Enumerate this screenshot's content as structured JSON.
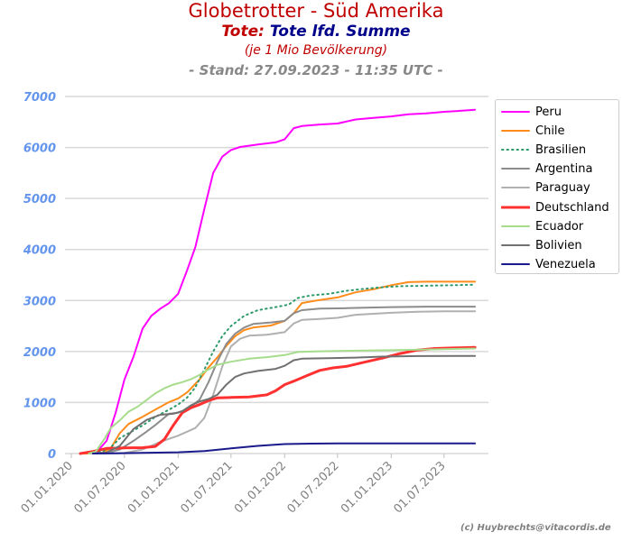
{
  "header": {
    "title": "Globetrotter - Süd Amerika",
    "subtitle_part1": "Tote:",
    "subtitle_part2": "Tote lfd. Summe",
    "subtitle_note": "(je 1 Mio Bevölkerung)",
    "stand": "- Stand: 27.09.2023 - 11:35 UTC -"
  },
  "credit": "(c) Huybrechts@vitacordis.de",
  "chart_data": {
    "type": "line",
    "title": "Globetrotter - Süd Amerika",
    "xlabel": "",
    "ylabel": "",
    "ylim": [
      0,
      7000
    ],
    "grid": true,
    "legend_position": "right",
    "y_ticks": [
      "0",
      "1000",
      "2000",
      "3000",
      "4000",
      "5000",
      "6000",
      "7000"
    ],
    "x_ticks": [
      "01.01.2020",
      "01.07.2020",
      "01.01.2021",
      "01.07.2021",
      "01.01.2022",
      "01.07.2022",
      "01.01.2023",
      "01.07.2023"
    ],
    "x_start": "2020-01-01",
    "x_end": "2023-12-01",
    "series": [
      {
        "name": "Peru",
        "color": "#ff00ff",
        "style": "solid",
        "width": 2,
        "points": [
          [
            "2020-02-15",
            0
          ],
          [
            "2020-03-25",
            10
          ],
          [
            "2020-05-01",
            250
          ],
          [
            "2020-06-01",
            800
          ],
          [
            "2020-07-01",
            1450
          ],
          [
            "2020-08-01",
            1900
          ],
          [
            "2020-09-01",
            2450
          ],
          [
            "2020-10-01",
            2700
          ],
          [
            "2020-11-01",
            2840
          ],
          [
            "2020-12-01",
            2950
          ],
          [
            "2021-01-01",
            3130
          ],
          [
            "2021-02-01",
            3600
          ],
          [
            "2021-03-01",
            4050
          ],
          [
            "2021-04-01",
            4800
          ],
          [
            "2021-05-01",
            5500
          ],
          [
            "2021-06-01",
            5820
          ],
          [
            "2021-07-01",
            5950
          ],
          [
            "2021-08-01",
            6010
          ],
          [
            "2021-10-01",
            6060
          ],
          [
            "2021-12-01",
            6100
          ],
          [
            "2022-01-01",
            6160
          ],
          [
            "2022-02-01",
            6380
          ],
          [
            "2022-03-01",
            6420
          ],
          [
            "2022-05-01",
            6450
          ],
          [
            "2022-07-01",
            6470
          ],
          [
            "2022-09-01",
            6550
          ],
          [
            "2022-11-01",
            6580
          ],
          [
            "2023-01-01",
            6610
          ],
          [
            "2023-03-01",
            6650
          ],
          [
            "2023-05-01",
            6670
          ],
          [
            "2023-07-01",
            6700
          ],
          [
            "2023-09-01",
            6720
          ],
          [
            "2023-10-15",
            6740
          ]
        ]
      },
      {
        "name": "Chile",
        "color": "#ff8c1a",
        "style": "solid",
        "width": 2,
        "points": [
          [
            "2020-02-15",
            0
          ],
          [
            "2020-04-15",
            10
          ],
          [
            "2020-05-15",
            100
          ],
          [
            "2020-06-15",
            400
          ],
          [
            "2020-07-15",
            580
          ],
          [
            "2020-09-01",
            720
          ],
          [
            "2020-10-15",
            860
          ],
          [
            "2020-12-01",
            1010
          ],
          [
            "2021-01-01",
            1080
          ],
          [
            "2021-02-01",
            1200
          ],
          [
            "2021-03-15",
            1450
          ],
          [
            "2021-04-15",
            1690
          ],
          [
            "2021-05-15",
            1880
          ],
          [
            "2021-06-15",
            2110
          ],
          [
            "2021-07-15",
            2300
          ],
          [
            "2021-08-15",
            2420
          ],
          [
            "2021-09-15",
            2470
          ],
          [
            "2021-11-15",
            2510
          ],
          [
            "2022-01-01",
            2600
          ],
          [
            "2022-02-01",
            2750
          ],
          [
            "2022-03-01",
            2950
          ],
          [
            "2022-05-01",
            3010
          ],
          [
            "2022-07-01",
            3060
          ],
          [
            "2022-09-01",
            3160
          ],
          [
            "2022-11-01",
            3220
          ],
          [
            "2023-01-01",
            3300
          ],
          [
            "2023-03-01",
            3360
          ],
          [
            "2023-05-01",
            3370
          ],
          [
            "2023-07-01",
            3370
          ],
          [
            "2023-10-15",
            3370
          ]
        ]
      },
      {
        "name": "Brasilien",
        "color": "#2e9a6b",
        "style": "dotted",
        "width": 2,
        "points": [
          [
            "2020-03-01",
            0
          ],
          [
            "2020-04-15",
            40
          ],
          [
            "2020-05-15",
            120
          ],
          [
            "2020-06-15",
            300
          ],
          [
            "2020-07-15",
            400
          ],
          [
            "2020-09-01",
            550
          ],
          [
            "2020-10-15",
            720
          ],
          [
            "2020-12-01",
            860
          ],
          [
            "2021-01-01",
            960
          ],
          [
            "2021-02-01",
            1100
          ],
          [
            "2021-03-01",
            1300
          ],
          [
            "2021-04-01",
            1650
          ],
          [
            "2021-05-01",
            2000
          ],
          [
            "2021-06-01",
            2300
          ],
          [
            "2021-07-01",
            2500
          ],
          [
            "2021-08-15",
            2700
          ],
          [
            "2021-10-01",
            2810
          ],
          [
            "2021-12-01",
            2870
          ],
          [
            "2022-01-15",
            2920
          ],
          [
            "2022-02-15",
            3050
          ],
          [
            "2022-04-01",
            3100
          ],
          [
            "2022-06-01",
            3130
          ],
          [
            "2022-08-01",
            3190
          ],
          [
            "2022-10-01",
            3230
          ],
          [
            "2022-12-01",
            3260
          ],
          [
            "2023-02-01",
            3280
          ],
          [
            "2023-05-01",
            3290
          ],
          [
            "2023-08-01",
            3300
          ],
          [
            "2023-10-15",
            3310
          ]
        ]
      },
      {
        "name": "Argentina",
        "color": "#8c8c8c",
        "style": "solid",
        "width": 2,
        "points": [
          [
            "2020-03-01",
            0
          ],
          [
            "2020-05-01",
            15
          ],
          [
            "2020-06-15",
            80
          ],
          [
            "2020-08-01",
            250
          ],
          [
            "2020-09-15",
            430
          ],
          [
            "2020-10-15",
            560
          ],
          [
            "2020-12-01",
            780
          ],
          [
            "2021-01-01",
            800
          ],
          [
            "2021-02-01",
            870
          ],
          [
            "2021-03-15",
            1050
          ],
          [
            "2021-04-15",
            1400
          ],
          [
            "2021-05-15",
            1800
          ],
          [
            "2021-06-15",
            2150
          ],
          [
            "2021-07-15",
            2350
          ],
          [
            "2021-08-15",
            2470
          ],
          [
            "2021-09-15",
            2540
          ],
          [
            "2021-11-15",
            2570
          ],
          [
            "2022-01-01",
            2600
          ],
          [
            "2022-02-01",
            2750
          ],
          [
            "2022-03-01",
            2810
          ],
          [
            "2022-05-01",
            2840
          ],
          [
            "2022-08-01",
            2850
          ],
          [
            "2022-10-01",
            2860
          ],
          [
            "2023-01-01",
            2870
          ],
          [
            "2023-05-01",
            2880
          ],
          [
            "2023-10-15",
            2880
          ]
        ]
      },
      {
        "name": "Paraguay",
        "color": "#b0b0b0",
        "style": "solid",
        "width": 2,
        "points": [
          [
            "2020-03-01",
            0
          ],
          [
            "2020-07-01",
            10
          ],
          [
            "2020-09-01",
            80
          ],
          [
            "2020-11-01",
            230
          ],
          [
            "2021-01-01",
            350
          ],
          [
            "2021-03-01",
            500
          ],
          [
            "2021-04-01",
            700
          ],
          [
            "2021-05-01",
            1150
          ],
          [
            "2021-06-01",
            1700
          ],
          [
            "2021-07-01",
            2100
          ],
          [
            "2021-08-01",
            2250
          ],
          [
            "2021-09-01",
            2310
          ],
          [
            "2021-11-01",
            2330
          ],
          [
            "2022-01-01",
            2380
          ],
          [
            "2022-02-01",
            2550
          ],
          [
            "2022-03-01",
            2620
          ],
          [
            "2022-05-01",
            2640
          ],
          [
            "2022-07-01",
            2660
          ],
          [
            "2022-09-01",
            2720
          ],
          [
            "2022-11-01",
            2740
          ],
          [
            "2023-01-01",
            2760
          ],
          [
            "2023-04-01",
            2780
          ],
          [
            "2023-07-01",
            2790
          ],
          [
            "2023-10-15",
            2790
          ]
        ]
      },
      {
        "name": "Deutschland",
        "color": "#ff3030",
        "style": "solid",
        "width": 3,
        "points": [
          [
            "2020-02-01",
            0
          ],
          [
            "2020-03-15",
            40
          ],
          [
            "2020-05-01",
            100
          ],
          [
            "2020-07-01",
            110
          ],
          [
            "2020-09-01",
            115
          ],
          [
            "2020-10-15",
            140
          ],
          [
            "2020-11-15",
            280
          ],
          [
            "2020-12-15",
            550
          ],
          [
            "2021-01-15",
            800
          ],
          [
            "2021-02-15",
            900
          ],
          [
            "2021-03-15",
            960
          ],
          [
            "2021-04-15",
            1040
          ],
          [
            "2021-05-15",
            1090
          ],
          [
            "2021-07-01",
            1100
          ],
          [
            "2021-09-01",
            1110
          ],
          [
            "2021-11-01",
            1150
          ],
          [
            "2021-12-01",
            1230
          ],
          [
            "2022-01-01",
            1350
          ],
          [
            "2022-02-01",
            1420
          ],
          [
            "2022-03-15",
            1520
          ],
          [
            "2022-05-01",
            1630
          ],
          [
            "2022-06-15",
            1680
          ],
          [
            "2022-08-01",
            1710
          ],
          [
            "2022-10-01",
            1790
          ],
          [
            "2022-12-01",
            1870
          ],
          [
            "2023-02-01",
            1960
          ],
          [
            "2023-04-01",
            2030
          ],
          [
            "2023-06-01",
            2060
          ],
          [
            "2023-08-01",
            2070
          ],
          [
            "2023-10-15",
            2080
          ]
        ]
      },
      {
        "name": "Ecuador",
        "color": "#a6dc8c",
        "style": "solid",
        "width": 2,
        "points": [
          [
            "2020-03-01",
            0
          ],
          [
            "2020-03-25",
            40
          ],
          [
            "2020-04-25",
            300
          ],
          [
            "2020-05-15",
            500
          ],
          [
            "2020-06-15",
            650
          ],
          [
            "2020-07-15",
            820
          ],
          [
            "2020-08-15",
            920
          ],
          [
            "2020-09-15",
            1050
          ],
          [
            "2020-10-15",
            1180
          ],
          [
            "2020-11-15",
            1280
          ],
          [
            "2020-12-15",
            1350
          ],
          [
            "2021-01-15",
            1400
          ],
          [
            "2021-02-15",
            1460
          ],
          [
            "2021-03-15",
            1540
          ],
          [
            "2021-04-15",
            1650
          ],
          [
            "2021-05-15",
            1740
          ],
          [
            "2021-07-01",
            1800
          ],
          [
            "2021-09-01",
            1860
          ],
          [
            "2021-11-01",
            1890
          ],
          [
            "2022-01-01",
            1930
          ],
          [
            "2022-02-15",
            1990
          ],
          [
            "2022-04-01",
            2000
          ],
          [
            "2022-07-01",
            2010
          ],
          [
            "2022-10-01",
            2020
          ],
          [
            "2023-01-01",
            2025
          ],
          [
            "2023-05-01",
            2040
          ],
          [
            "2023-10-15",
            2060
          ]
        ]
      },
      {
        "name": "Bolivien",
        "color": "#707070",
        "style": "solid",
        "width": 2,
        "points": [
          [
            "2020-03-15",
            0
          ],
          [
            "2020-05-01",
            20
          ],
          [
            "2020-06-15",
            150
          ],
          [
            "2020-08-01",
            480
          ],
          [
            "2020-09-15",
            660
          ],
          [
            "2020-11-01",
            760
          ],
          [
            "2020-12-15",
            780
          ],
          [
            "2021-01-15",
            830
          ],
          [
            "2021-02-15",
            950
          ],
          [
            "2021-03-15",
            1020
          ],
          [
            "2021-04-15",
            1070
          ],
          [
            "2021-05-15",
            1150
          ],
          [
            "2021-06-15",
            1350
          ],
          [
            "2021-07-15",
            1500
          ],
          [
            "2021-08-15",
            1570
          ],
          [
            "2021-10-01",
            1620
          ],
          [
            "2021-12-01",
            1660
          ],
          [
            "2022-01-01",
            1720
          ],
          [
            "2022-02-01",
            1830
          ],
          [
            "2022-03-01",
            1860
          ],
          [
            "2022-06-01",
            1870
          ],
          [
            "2022-09-01",
            1880
          ],
          [
            "2022-12-01",
            1900
          ],
          [
            "2023-04-01",
            1910
          ],
          [
            "2023-10-15",
            1915
          ]
        ]
      },
      {
        "name": "Venezuela",
        "color": "#1a1a8c",
        "style": "solid",
        "width": 2,
        "points": [
          [
            "2020-03-15",
            0
          ],
          [
            "2020-06-01",
            5
          ],
          [
            "2020-09-01",
            12
          ],
          [
            "2021-01-01",
            25
          ],
          [
            "2021-04-01",
            50
          ],
          [
            "2021-07-01",
            100
          ],
          [
            "2021-10-01",
            150
          ],
          [
            "2022-01-01",
            185
          ],
          [
            "2022-04-01",
            195
          ],
          [
            "2022-07-01",
            198
          ],
          [
            "2023-01-01",
            200
          ],
          [
            "2023-10-15",
            200
          ]
        ]
      }
    ]
  }
}
